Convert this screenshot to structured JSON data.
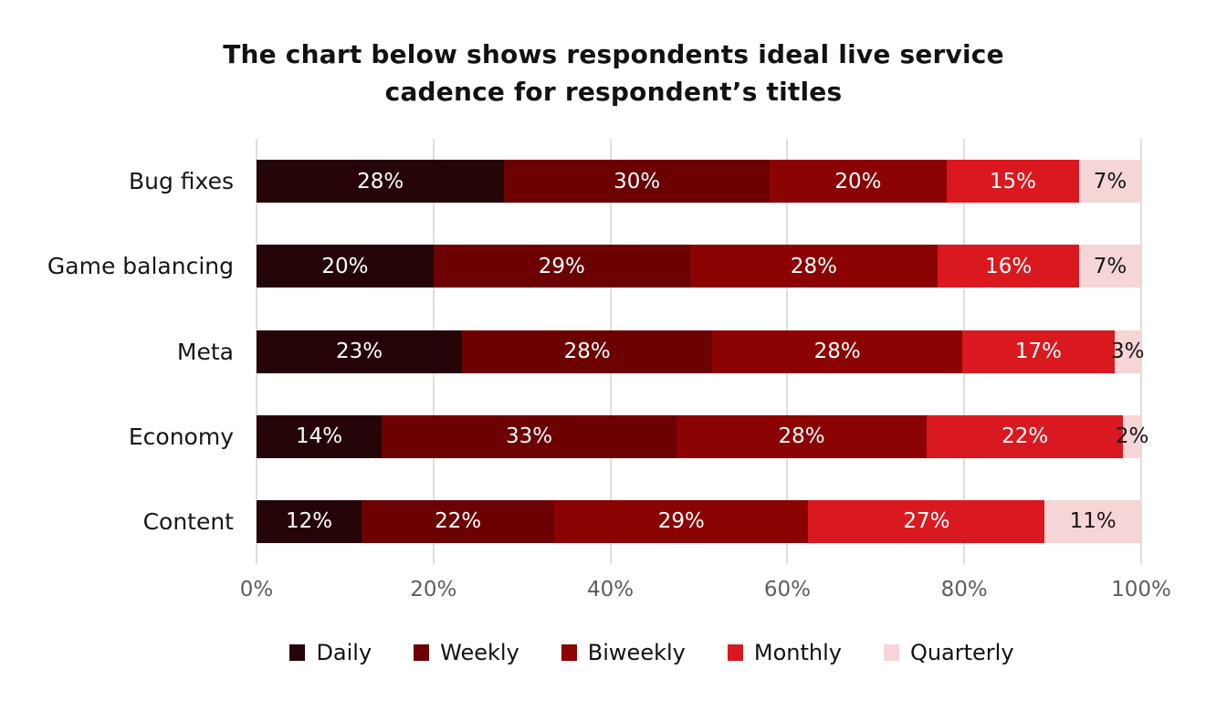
{
  "title": {
    "line1": "The chart below shows respondents ideal live service",
    "line2": "cadence for respondent’s titles"
  },
  "colors": {
    "background": "#ffffff",
    "title_text": "#121212",
    "grid": "#dedede",
    "axis_text": "#5d5d5d",
    "category_text": "#161616",
    "daily": "#260509",
    "weekly": "#6b0103",
    "biweekly": "#8b0303",
    "monthly": "#d9191f",
    "quarterly": "#f6d5d7"
  },
  "chart_data": {
    "type": "bar",
    "orientation": "horizontal",
    "stacked": true,
    "title": "The chart below shows respondents ideal live service cadence for respondent’s titles",
    "categories": [
      "Bug fixes",
      "Game balancing",
      "Meta",
      "Economy",
      "Content"
    ],
    "series": [
      {
        "name": "Daily",
        "color": "#260509",
        "label_color": "#ffffff",
        "values": [
          28,
          20,
          23,
          14,
          12
        ],
        "labels": [
          "28%",
          "20%",
          "23%",
          "14%",
          "12%"
        ]
      },
      {
        "name": "Weekly",
        "color": "#6b0103",
        "label_color": "#ffffff",
        "values": [
          30,
          29,
          28,
          33,
          22
        ],
        "labels": [
          "30%",
          "29%",
          "28%",
          "33%",
          "22%"
        ]
      },
      {
        "name": "Biweekly",
        "color": "#8b0303",
        "label_color": "#ffffff",
        "values": [
          20,
          28,
          28,
          28,
          29
        ],
        "labels": [
          "20%",
          "28%",
          "28%",
          "28%",
          "29%"
        ]
      },
      {
        "name": "Monthly",
        "color": "#d9191f",
        "label_color": "#ffffff",
        "values": [
          15,
          16,
          17,
          22,
          27
        ],
        "labels": [
          "15%",
          "16%",
          "17%",
          "22%",
          "27%"
        ]
      },
      {
        "name": "Quarterly",
        "color": "#f6d5d7",
        "label_color": "#141414",
        "values": [
          7,
          7,
          3,
          2,
          11
        ],
        "labels": [
          "7%",
          "7%",
          "3%",
          "2%",
          "11%"
        ]
      }
    ],
    "x_axis": {
      "ticks": [
        "0%",
        "20%",
        "40%",
        "60%",
        "80%",
        "100%"
      ],
      "tick_values": [
        0,
        20,
        40,
        60,
        80,
        100
      ],
      "range": [
        0,
        100
      ],
      "grid": true
    },
    "value_suffix": "%",
    "legend": {
      "position": "bottom",
      "labels": [
        "Daily",
        "Weekly",
        "Biweekly",
        "Monthly",
        "Quarterly"
      ]
    }
  }
}
